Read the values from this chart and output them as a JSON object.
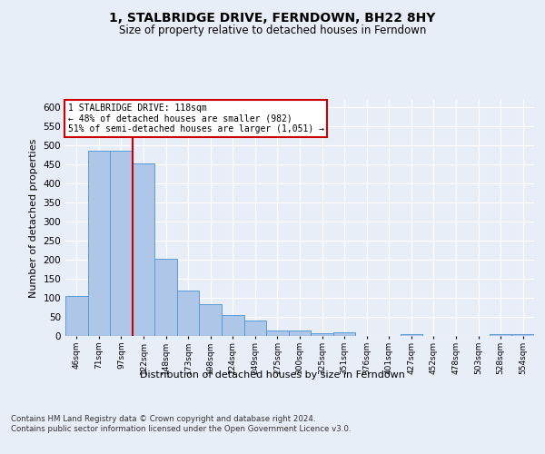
{
  "title": "1, STALBRIDGE DRIVE, FERNDOWN, BH22 8HY",
  "subtitle": "Size of property relative to detached houses in Ferndown",
  "xlabel": "Distribution of detached houses by size in Ferndown",
  "ylabel": "Number of detached properties",
  "categories": [
    "46sqm",
    "71sqm",
    "97sqm",
    "122sqm",
    "148sqm",
    "173sqm",
    "198sqm",
    "224sqm",
    "249sqm",
    "275sqm",
    "300sqm",
    "325sqm",
    "351sqm",
    "376sqm",
    "401sqm",
    "427sqm",
    "452sqm",
    "478sqm",
    "503sqm",
    "528sqm",
    "554sqm"
  ],
  "values": [
    105,
    487,
    487,
    453,
    202,
    120,
    83,
    55,
    40,
    15,
    15,
    8,
    9,
    0,
    0,
    5,
    0,
    0,
    0,
    5,
    5
  ],
  "bar_color": "#aec6e8",
  "bar_edge_color": "#5b9bd5",
  "vline_x": 2.5,
  "vline_color": "#cc0000",
  "annotation_text": "1 STALBRIDGE DRIVE: 118sqm\n← 48% of detached houses are smaller (982)\n51% of semi-detached houses are larger (1,051) →",
  "annotation_box_color": "#ffffff",
  "annotation_box_edge": "#cc0000",
  "bg_color": "#e8eef7",
  "plot_bg_color": "#e8eef7",
  "grid_color": "#ffffff",
  "footer": "Contains HM Land Registry data © Crown copyright and database right 2024.\nContains public sector information licensed under the Open Government Licence v3.0.",
  "ylim": [
    0,
    620
  ],
  "yticks": [
    0,
    50,
    100,
    150,
    200,
    250,
    300,
    350,
    400,
    450,
    500,
    550,
    600
  ]
}
